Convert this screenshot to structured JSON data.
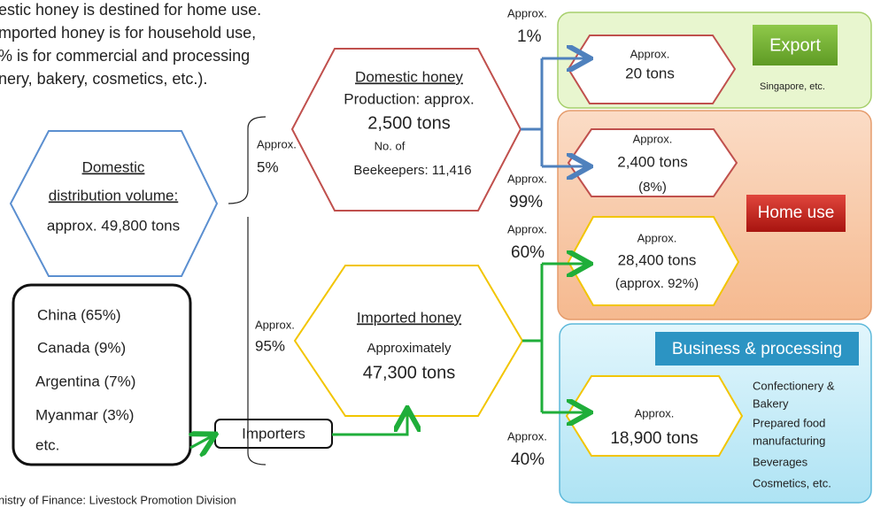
{
  "intro": [
    "estic honey is destined for home use.",
    "mported honey is for household use,",
    "% is for commercial and processing",
    "nery, bakery, cosmetics, etc.)."
  ],
  "source": "nistry of Finance: Livestock Promotion Division",
  "domestic_distribution": [
    "Domestic",
    "distribution volume:",
    "approx. 49,800 tons"
  ],
  "share_domestic": [
    "Approx.",
    "5%"
  ],
  "share_imported": [
    "Approx.",
    "95%"
  ],
  "domestic_honey": [
    "Domestic honey",
    "Production: approx.",
    "2,500 tons",
    "No. of",
    "Beekeepers: 11,416"
  ],
  "imported_honey": [
    "Imported honey",
    "Approximately",
    "47,300 tons"
  ],
  "countries": [
    "China (65%)",
    "Canada (9%)",
    "Argentina (7%)",
    "Myanmar (3%)",
    "etc."
  ],
  "importers": "Importers",
  "share_export": [
    "Approx.",
    "1%"
  ],
  "share_home_domestic": [
    "Approx.",
    "99%"
  ],
  "share_home_imported": [
    "Approx.",
    "60%"
  ],
  "share_business": [
    "Approx.",
    "40%"
  ],
  "export": {
    "label": "Export",
    "note": "Singapore, etc.",
    "amount": [
      "Approx.",
      "20 tons"
    ]
  },
  "home_use": {
    "label": "Home use",
    "domestic": [
      "Approx.",
      "2,400 tons",
      "(8%)"
    ],
    "imported": [
      "Approx.",
      "28,400 tons",
      "(approx. 92%)"
    ]
  },
  "business": {
    "label": "Business & processing",
    "amount": [
      "Approx.",
      "18,900 tons"
    ],
    "uses": [
      "Confectionery &",
      "Bakery",
      "Prepared food",
      "manufacturing",
      "Beverages",
      "Cosmetics, etc."
    ]
  }
}
